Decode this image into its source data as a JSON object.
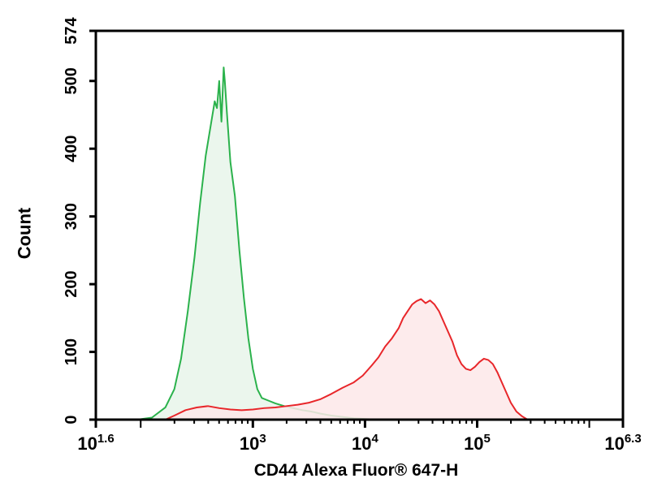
{
  "chart_data": {
    "type": "area",
    "xlabel": "CD44 Alexa Fluor® 647-H",
    "ylabel": "Count",
    "x_scale": "log10",
    "xlim": [
      1.6,
      6.3
    ],
    "ylim": [
      0,
      574
    ],
    "xticks": [
      {
        "base": "10",
        "exp": "1.6",
        "value": 1.6
      },
      {
        "base": "10",
        "exp": "3",
        "value": 3
      },
      {
        "base": "10",
        "exp": "4",
        "value": 4
      },
      {
        "base": "10",
        "exp": "5",
        "value": 5
      },
      {
        "base": "10",
        "exp": "6.3",
        "value": 6.3
      }
    ],
    "yticks": [
      0,
      100,
      200,
      300,
      400,
      500,
      574
    ],
    "grid": false,
    "legend": "none",
    "series": [
      {
        "color": "#2bb24c",
        "fill": "#e7f4ea",
        "points": [
          [
            1.97,
            0
          ],
          [
            2.1,
            3
          ],
          [
            2.22,
            18
          ],
          [
            2.3,
            45
          ],
          [
            2.36,
            90
          ],
          [
            2.42,
            160
          ],
          [
            2.48,
            240
          ],
          [
            2.53,
            320
          ],
          [
            2.58,
            390
          ],
          [
            2.62,
            430
          ],
          [
            2.66,
            470
          ],
          [
            2.68,
            460
          ],
          [
            2.7,
            500
          ],
          [
            2.72,
            440
          ],
          [
            2.74,
            520
          ],
          [
            2.75,
            500
          ],
          [
            2.77,
            450
          ],
          [
            2.8,
            380
          ],
          [
            2.84,
            330
          ],
          [
            2.88,
            250
          ],
          [
            2.92,
            180
          ],
          [
            2.96,
            120
          ],
          [
            3.0,
            75
          ],
          [
            3.04,
            45
          ],
          [
            3.08,
            32
          ],
          [
            3.14,
            28
          ],
          [
            3.2,
            24
          ],
          [
            3.28,
            20
          ],
          [
            3.36,
            17
          ],
          [
            3.44,
            14
          ],
          [
            3.52,
            12
          ],
          [
            3.6,
            9
          ],
          [
            3.7,
            6
          ],
          [
            3.8,
            4
          ],
          [
            3.9,
            2
          ],
          [
            4.0,
            1
          ],
          [
            4.1,
            0
          ]
        ]
      },
      {
        "color": "#e8262a",
        "fill": "#fde8e9",
        "points": [
          [
            2.22,
            0
          ],
          [
            2.3,
            6
          ],
          [
            2.4,
            14
          ],
          [
            2.5,
            18
          ],
          [
            2.6,
            20
          ],
          [
            2.7,
            17
          ],
          [
            2.8,
            15
          ],
          [
            2.9,
            14
          ],
          [
            3.0,
            15
          ],
          [
            3.1,
            17
          ],
          [
            3.2,
            18
          ],
          [
            3.3,
            20
          ],
          [
            3.4,
            22
          ],
          [
            3.5,
            25
          ],
          [
            3.6,
            30
          ],
          [
            3.7,
            38
          ],
          [
            3.8,
            47
          ],
          [
            3.9,
            55
          ],
          [
            3.98,
            65
          ],
          [
            4.06,
            80
          ],
          [
            4.12,
            92
          ],
          [
            4.18,
            108
          ],
          [
            4.24,
            120
          ],
          [
            4.3,
            135
          ],
          [
            4.34,
            150
          ],
          [
            4.38,
            160
          ],
          [
            4.42,
            170
          ],
          [
            4.46,
            175
          ],
          [
            4.5,
            178
          ],
          [
            4.54,
            172
          ],
          [
            4.58,
            176
          ],
          [
            4.62,
            170
          ],
          [
            4.66,
            160
          ],
          [
            4.7,
            145
          ],
          [
            4.74,
            130
          ],
          [
            4.78,
            115
          ],
          [
            4.82,
            95
          ],
          [
            4.86,
            82
          ],
          [
            4.9,
            75
          ],
          [
            4.94,
            73
          ],
          [
            4.98,
            78
          ],
          [
            5.02,
            85
          ],
          [
            5.06,
            90
          ],
          [
            5.1,
            88
          ],
          [
            5.14,
            82
          ],
          [
            5.18,
            70
          ],
          [
            5.22,
            55
          ],
          [
            5.26,
            40
          ],
          [
            5.3,
            25
          ],
          [
            5.35,
            12
          ],
          [
            5.4,
            5
          ],
          [
            5.45,
            0
          ]
        ]
      }
    ]
  }
}
